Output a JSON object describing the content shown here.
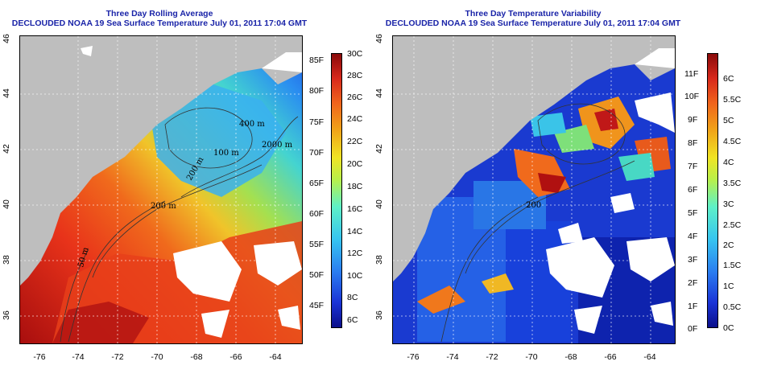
{
  "left": {
    "title_line1": "Three Day Rolling Average",
    "title_line2": "DECLOUDED NOAA 19 Sea Surface Temperature July 01, 2011 17:04 GMT",
    "contour_labels": [
      "400 m",
      "100 m",
      "2000 m",
      "200 m",
      "200 m",
      "50 m"
    ],
    "colorbar_f": [
      "85F",
      "80F",
      "75F",
      "70F",
      "65F",
      "60F",
      "55F",
      "50F",
      "45F"
    ],
    "colorbar_c": [
      "30C",
      "28C",
      "26C",
      "24C",
      "22C",
      "20C",
      "18C",
      "16C",
      "14C",
      "12C",
      "10C",
      "8C",
      "6C"
    ]
  },
  "right": {
    "title_line1": "Three Day Temperature Variability",
    "title_line2": "DECLOUDED NOAA 19 Sea Surface Temperature July 01, 2011 17:04 GMT",
    "contour_labels": [
      "200"
    ],
    "colorbar_f": [
      "11F",
      "10F",
      "9F",
      "8F",
      "7F",
      "6F",
      "5F",
      "4F",
      "3F",
      "2F",
      "1F",
      "0F"
    ],
    "colorbar_c": [
      "6C",
      "5.5C",
      "5C",
      "4.5C",
      "4C",
      "3.5C",
      "3C",
      "2.5C",
      "2C",
      "1.5C",
      "1C",
      "0.5C",
      "0C"
    ]
  },
  "x_ticks": [
    "-76",
    "-74",
    "-72",
    "-70",
    "-68",
    "-66",
    "-64"
  ],
  "y_ticks": [
    "46",
    "44",
    "42",
    "40",
    "38",
    "36"
  ],
  "colors": {
    "title": "#1a24a8",
    "land": "#bebebe",
    "cloud": "#ffffff",
    "warm_scale": [
      "#0b0f8a",
      "#1a33d6",
      "#2a7bf0",
      "#36c4f0",
      "#5ef0c8",
      "#b8f04a",
      "#f0e424",
      "#f0a418",
      "#f0641c",
      "#d8281c",
      "#8a0a0a"
    ]
  }
}
